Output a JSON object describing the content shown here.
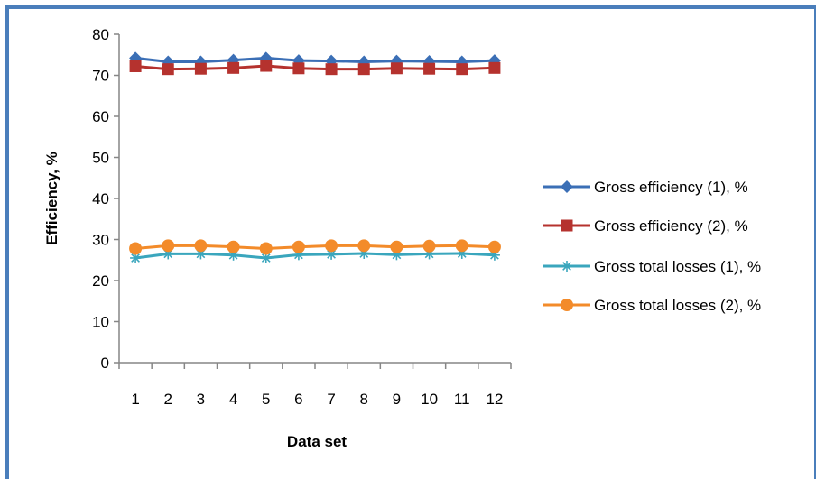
{
  "chart_data": {
    "type": "line",
    "title": "",
    "xlabel": "Data set",
    "ylabel": "Efficiency, %",
    "ylim": [
      0,
      80
    ],
    "yticks": [
      0,
      10,
      20,
      30,
      40,
      50,
      60,
      70,
      80
    ],
    "grid": false,
    "legend_position": "right",
    "categories": [
      "1",
      "2",
      "3",
      "4",
      "5",
      "6",
      "7",
      "8",
      "9",
      "10",
      "11",
      "12"
    ],
    "series": [
      {
        "name": "Gross efficiency (1), %",
        "color": "#3b6fb6",
        "marker": "diamond",
        "values": [
          74.2,
          73.3,
          73.3,
          73.7,
          74.2,
          73.6,
          73.5,
          73.3,
          73.5,
          73.4,
          73.3,
          73.6
        ]
      },
      {
        "name": "Gross efficiency (2), %",
        "color": "#b5322e",
        "marker": "square",
        "values": [
          72.2,
          71.5,
          71.6,
          71.8,
          72.3,
          71.7,
          71.5,
          71.5,
          71.7,
          71.6,
          71.5,
          71.8
        ]
      },
      {
        "name": "Gross total losses (1), %",
        "color": "#3aa6bd",
        "marker": "asterisk",
        "values": [
          25.5,
          26.5,
          26.5,
          26.2,
          25.5,
          26.3,
          26.4,
          26.6,
          26.3,
          26.5,
          26.6,
          26.2
        ]
      },
      {
        "name": "Gross total losses (2), %",
        "color": "#f38b2a",
        "marker": "circle",
        "values": [
          27.8,
          28.5,
          28.5,
          28.2,
          27.8,
          28.2,
          28.5,
          28.5,
          28.2,
          28.4,
          28.5,
          28.2
        ]
      }
    ]
  },
  "frame_color": "#4a7ebb"
}
